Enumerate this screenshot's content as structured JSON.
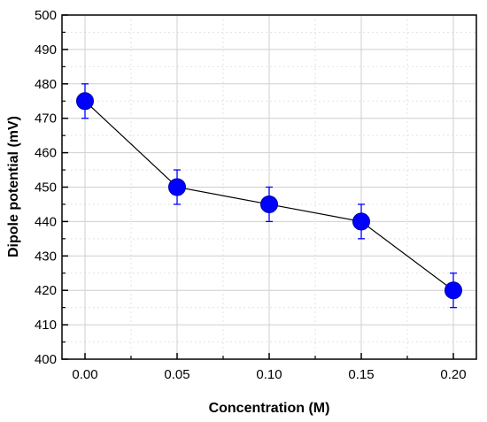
{
  "chart_data": {
    "type": "line",
    "title": "",
    "xlabel": "Concentration (M)",
    "ylabel": "Dipole potential (mV)",
    "xlim": [
      -0.0125,
      0.2125
    ],
    "ylim": [
      400,
      500
    ],
    "x_ticks": [
      "0.00",
      "0.05",
      "0.10",
      "0.15",
      "0.20"
    ],
    "y_ticks": [
      "400",
      "410",
      "420",
      "430",
      "440",
      "450",
      "460",
      "470",
      "480",
      "490",
      "500"
    ],
    "grid": true,
    "legend": "none",
    "series": [
      {
        "x": [
          0.0,
          0.05,
          0.1,
          0.15,
          0.2
        ],
        "y": [
          475,
          450,
          445,
          440,
          420
        ],
        "error": [
          5,
          5,
          5,
          5,
          5
        ],
        "marker_color": "#0000ff",
        "line_color": "#000000",
        "errorbar_color": "#0000ff"
      }
    ]
  }
}
